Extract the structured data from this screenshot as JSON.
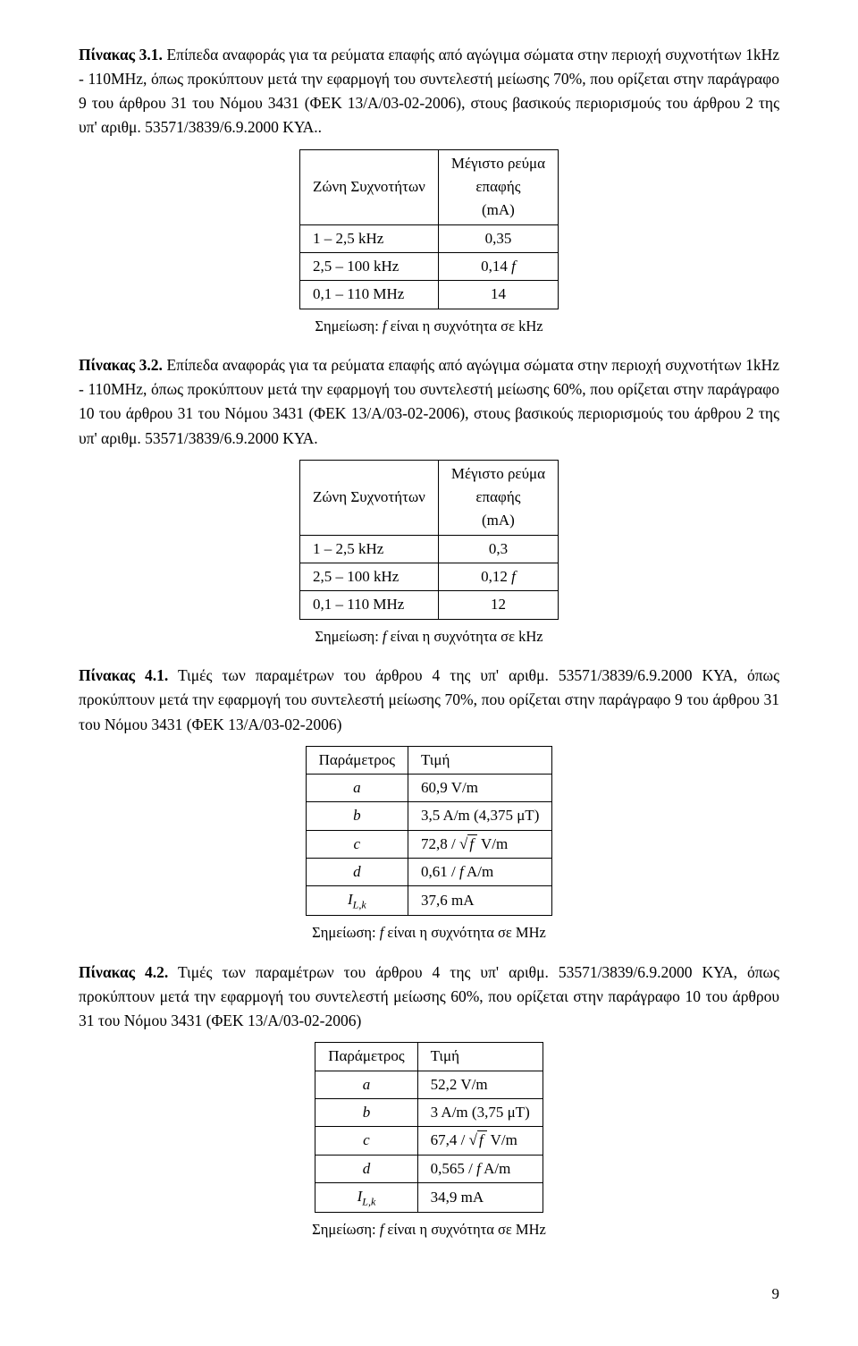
{
  "p31": {
    "title": "Πίνακας 3.1.",
    "body": "Επίπεδα αναφοράς για τα ρεύματα επαφής από αγώγιμα σώματα στην περιοχή συχνοτήτων 1kHz - 110MHz, όπως προκύπτουν μετά την εφαρμογή του συντελεστή μείωσης 70%, που ορίζεται στην παράγραφο 9 του άρθρου 31 του Νόμου 3431 (ΦΕΚ 13/Α/03-02-2006), στους βασικούς περιορισμούς του άρθρου 2 της υπ' αριθμ. 53571/3839/6.9.2000 ΚΥΑ.."
  },
  "t31": {
    "h1": "Ζώνη Συχνοτήτων",
    "h2a": "Μέγιστο ρεύμα",
    "h2b": "επαφής",
    "h2c": "(mA)",
    "r1a": "1 – 2,5 kHz",
    "r1b": "0,35",
    "r2a": "2,5 – 100 kHz",
    "r2b_pre": "0,14 ",
    "r2b_f": "f",
    "r3a": "0,1 – 110 MHz",
    "r3b": "14",
    "note_pre": "Σημείωση: ",
    "note_f": "f",
    "note_post": " είναι η συχνότητα σε kHz"
  },
  "p32": {
    "title": "Πίνακας 3.2.",
    "body": "Επίπεδα αναφοράς για τα ρεύματα επαφής από αγώγιμα σώματα στην περιοχή συχνοτήτων 1kHz - 110MHz, όπως προκύπτουν μετά την εφαρμογή του συντελεστή μείωσης 60%, που ορίζεται στην παράγραφο 10 του άρθρου 31 του Νόμου 3431 (ΦΕΚ 13/Α/03-02-2006), στους βασικούς περιορισμούς του άρθρου 2 της υπ' αριθμ. 53571/3839/6.9.2000 ΚΥΑ."
  },
  "t32": {
    "h1": "Ζώνη Συχνοτήτων",
    "h2a": "Μέγιστο ρεύμα",
    "h2b": "επαφής",
    "h2c": "(mA)",
    "r1a": "1 – 2,5 kHz",
    "r1b": "0,3",
    "r2a": "2,5 – 100 kHz",
    "r2b_pre": "0,12 ",
    "r2b_f": "f",
    "r3a": "0,1 – 110 MHz",
    "r3b": "12",
    "note_pre": "Σημείωση: ",
    "note_f": "f",
    "note_post": " είναι η συχνότητα σε kHz"
  },
  "p41": {
    "title": "Πίνακας 4.1.",
    "body": "Τιμές των παραμέτρων του άρθρου 4 της υπ' αριθμ. 53571/3839/6.9.2000 ΚΥΑ, όπως προκύπτουν μετά την εφαρμογή του συντελεστή μείωσης 70%, που ορίζεται στην παράγραφο 9 του άρθρου 31 του Νόμου 3431 (ΦΕΚ 13/Α/03-02-2006)"
  },
  "t41": {
    "h1": "Παράμετρος",
    "h2": "Τιμή",
    "pa": "a",
    "va": "60,9 V/m",
    "pb": "b",
    "vb": "3,5 A/m (4,375 μΤ)",
    "pc": "c",
    "vc_pre": "72,8 / ",
    "vc_f": "f",
    "vc_post": "  V/m",
    "pd": "d",
    "vd_pre": "0,61 / ",
    "vd_f": "f",
    "vd_post": " A/m",
    "pi": "I",
    "pi_sub": "L,k",
    "vi": "37,6 mA",
    "note_pre": "Σημείωση: ",
    "note_f": "f",
    "note_post": " είναι η συχνότητα σε MHz"
  },
  "p42": {
    "title": "Πίνακας 4.2.",
    "body": "Τιμές των παραμέτρων του άρθρου 4 της υπ' αριθμ. 53571/3839/6.9.2000 ΚΥΑ, όπως προκύπτουν μετά την εφαρμογή του συντελεστή μείωσης 60%, που ορίζεται στην παράγραφο 10 του άρθρου 31 του Νόμου 3431 (ΦΕΚ 13/Α/03-02-2006)"
  },
  "t42": {
    "h1": "Παράμετρος",
    "h2": "Τιμή",
    "pa": "a",
    "va": "52,2 V/m",
    "pb": "b",
    "vb": "3 A/m (3,75 μΤ)",
    "pc": "c",
    "vc_pre": "67,4 / ",
    "vc_f": "f",
    "vc_post": "  V/m",
    "pd": "d",
    "vd_pre": "0,565 / ",
    "vd_f": "f",
    "vd_post": " A/m",
    "pi": "I",
    "pi_sub": "L,k",
    "vi": "34,9 mA",
    "note_pre": "Σημείωση: ",
    "note_f": "f",
    "note_post": " είναι η συχνότητα σε MHz"
  },
  "pagenum": "9"
}
